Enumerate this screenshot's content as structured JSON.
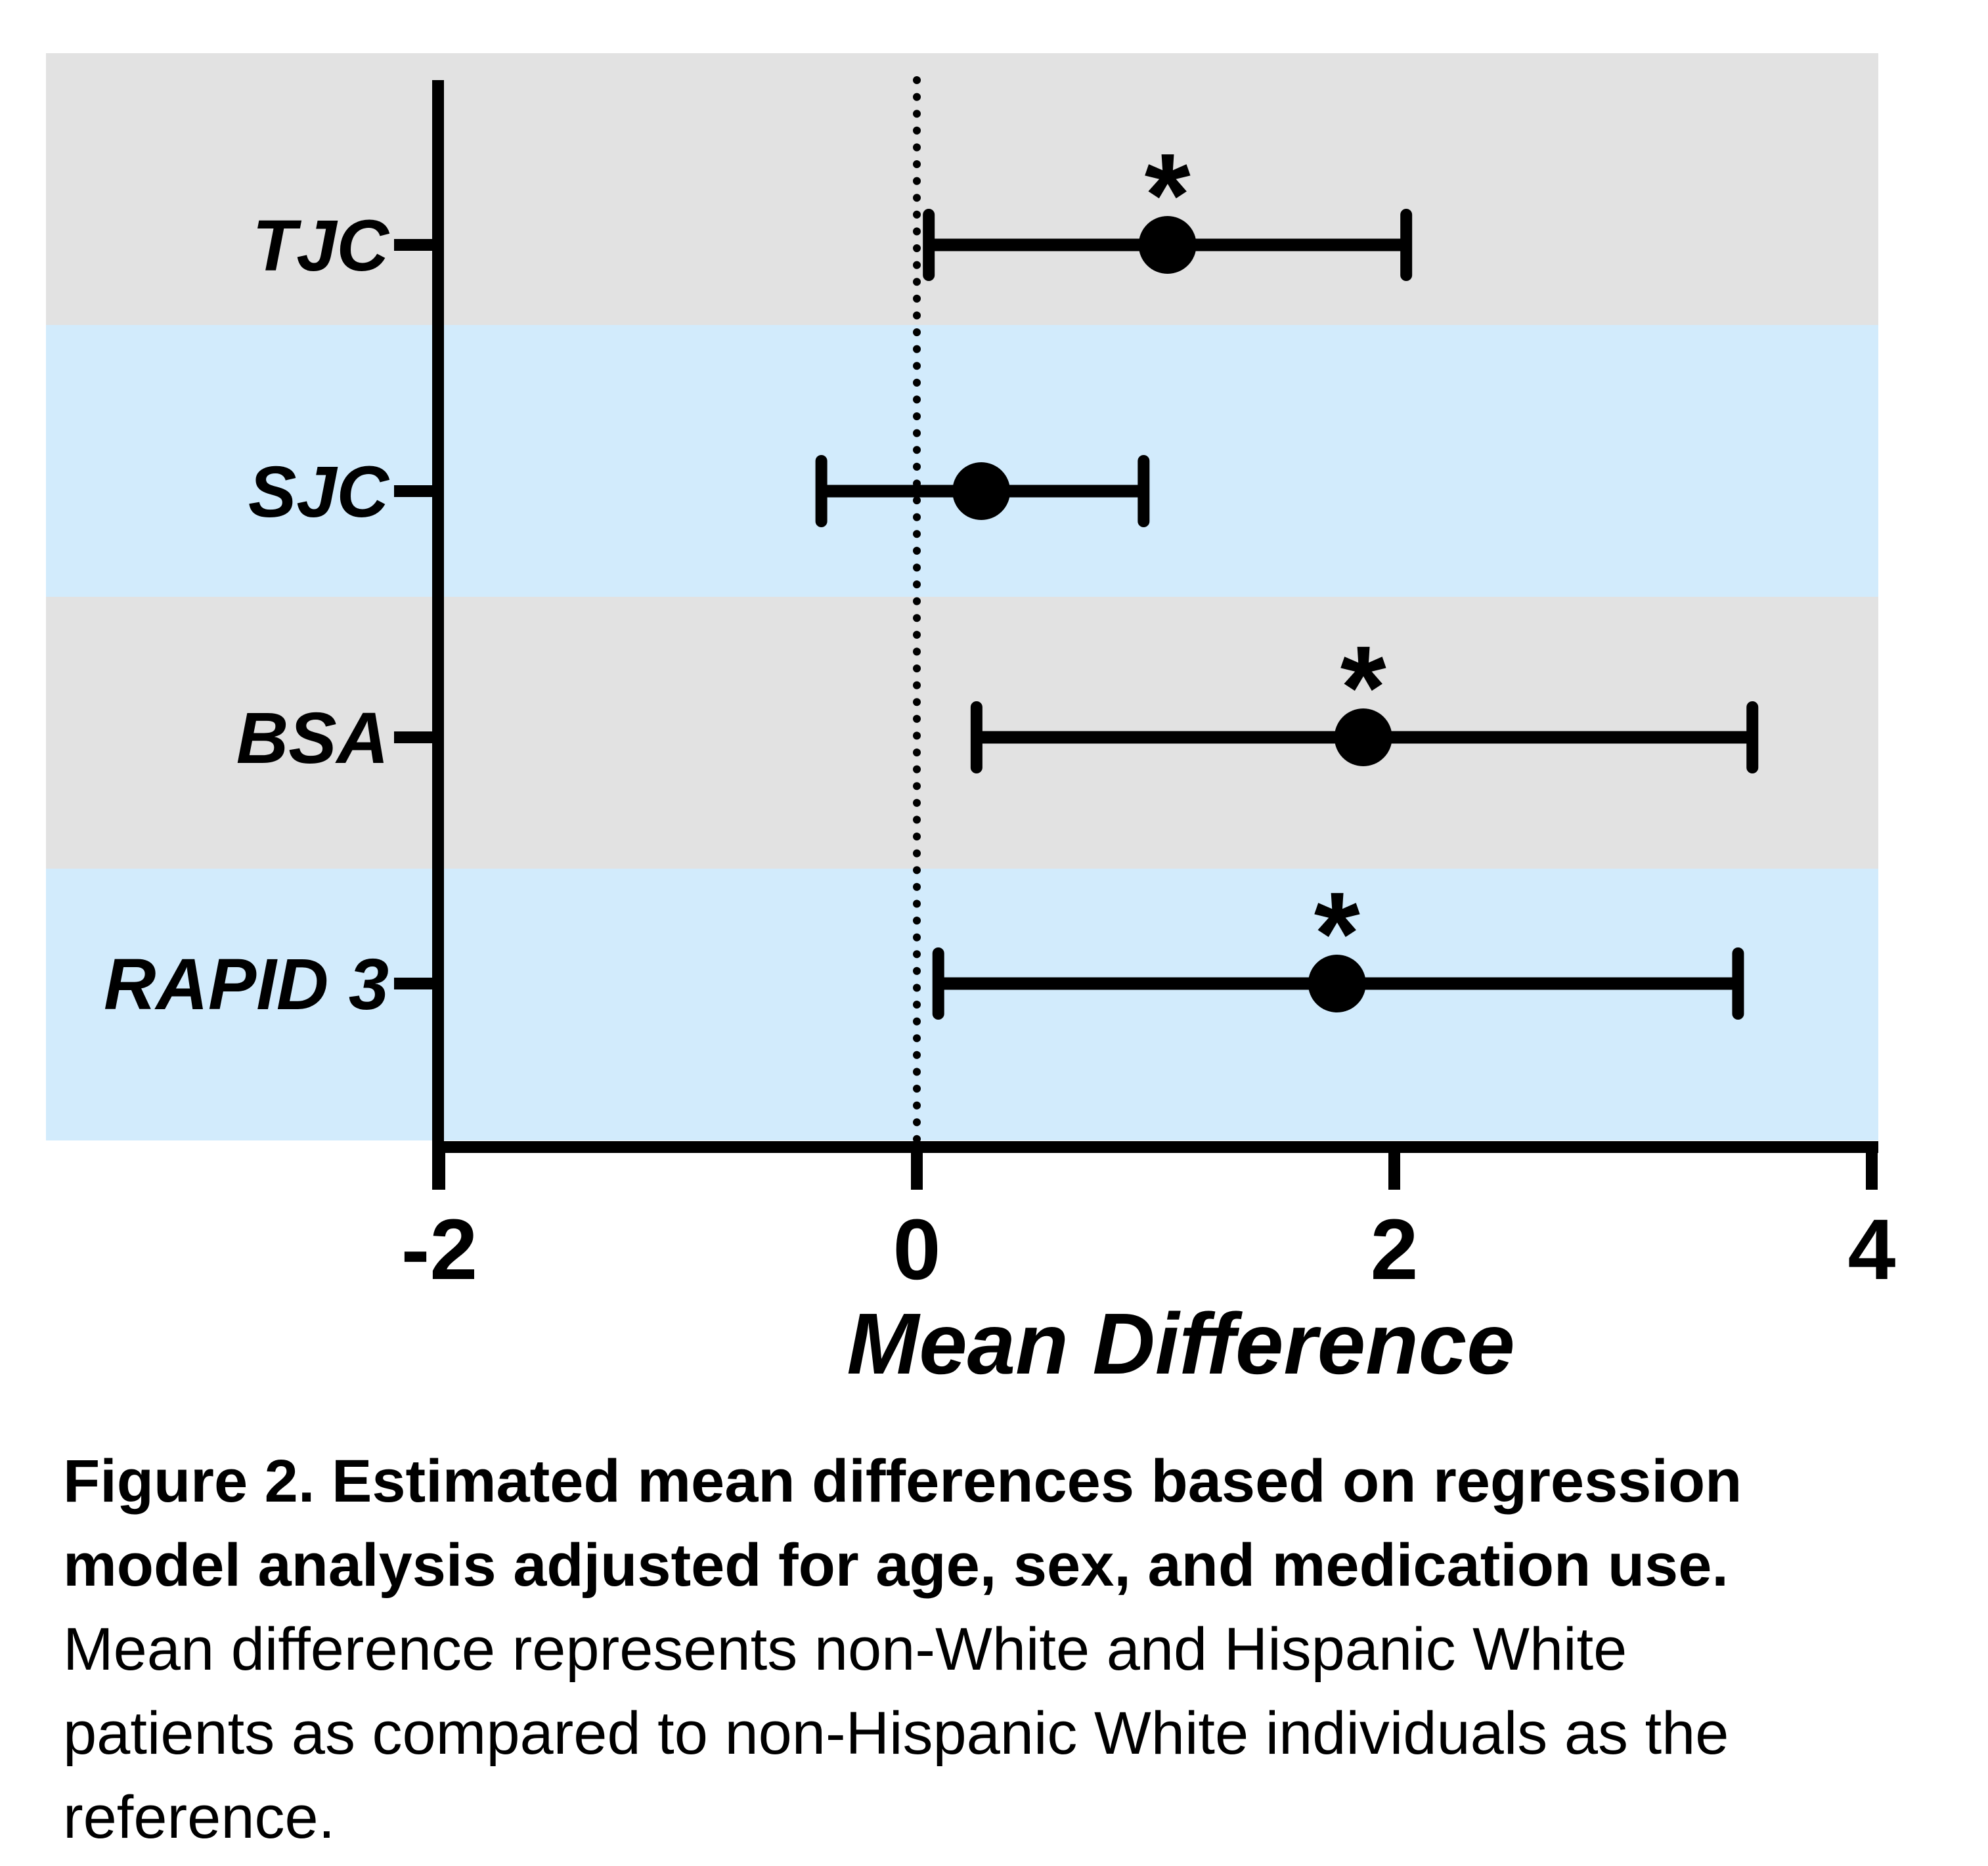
{
  "figure": {
    "caption_lines": [
      {
        "text": "Figure 2. Estimated mean differences based on regression",
        "bold": true
      },
      {
        "text": "model analysis adjusted for age, sex, and medication use.",
        "bold": true
      },
      {
        "text": "Mean difference represents non-White and Hispanic White",
        "bold": false
      },
      {
        "text": "patients as compared to non-Hispanic White individuals as the",
        "bold": false
      },
      {
        "text": "reference.",
        "bold": false
      }
    ]
  },
  "chart_data": {
    "type": "scatter",
    "subtype": "forest-plot-horizontal-error-bars",
    "title": "",
    "xlabel": "Mean Difference",
    "ylabel": "",
    "xlim": [
      -2,
      4
    ],
    "xticks": [
      -2,
      0,
      2,
      4
    ],
    "xtick_labels": [
      "-2",
      "0",
      "2",
      "4"
    ],
    "zero_reference_line": 0,
    "grid": "off",
    "legend": "none",
    "categories": [
      "TJC",
      "SJC",
      "BSA",
      "RAPID 3"
    ],
    "series": [
      {
        "name": "TJC",
        "mean": 1.05,
        "ci_low": 0.05,
        "ci_high": 2.05,
        "significant": true
      },
      {
        "name": "SJC",
        "mean": 0.27,
        "ci_low": -0.4,
        "ci_high": 0.95,
        "significant": false
      },
      {
        "name": "BSA",
        "mean": 1.87,
        "ci_low": 0.25,
        "ci_high": 3.5,
        "significant": true
      },
      {
        "name": "RAPID 3",
        "mean": 1.76,
        "ci_low": 0.09,
        "ci_high": 3.44,
        "significant": true
      }
    ],
    "significance_marker": "*",
    "colors": {
      "band_odd": "#e2e2e2",
      "band_even": "#d2ebfc",
      "ink": "#000000",
      "background": "#ffffff"
    }
  }
}
